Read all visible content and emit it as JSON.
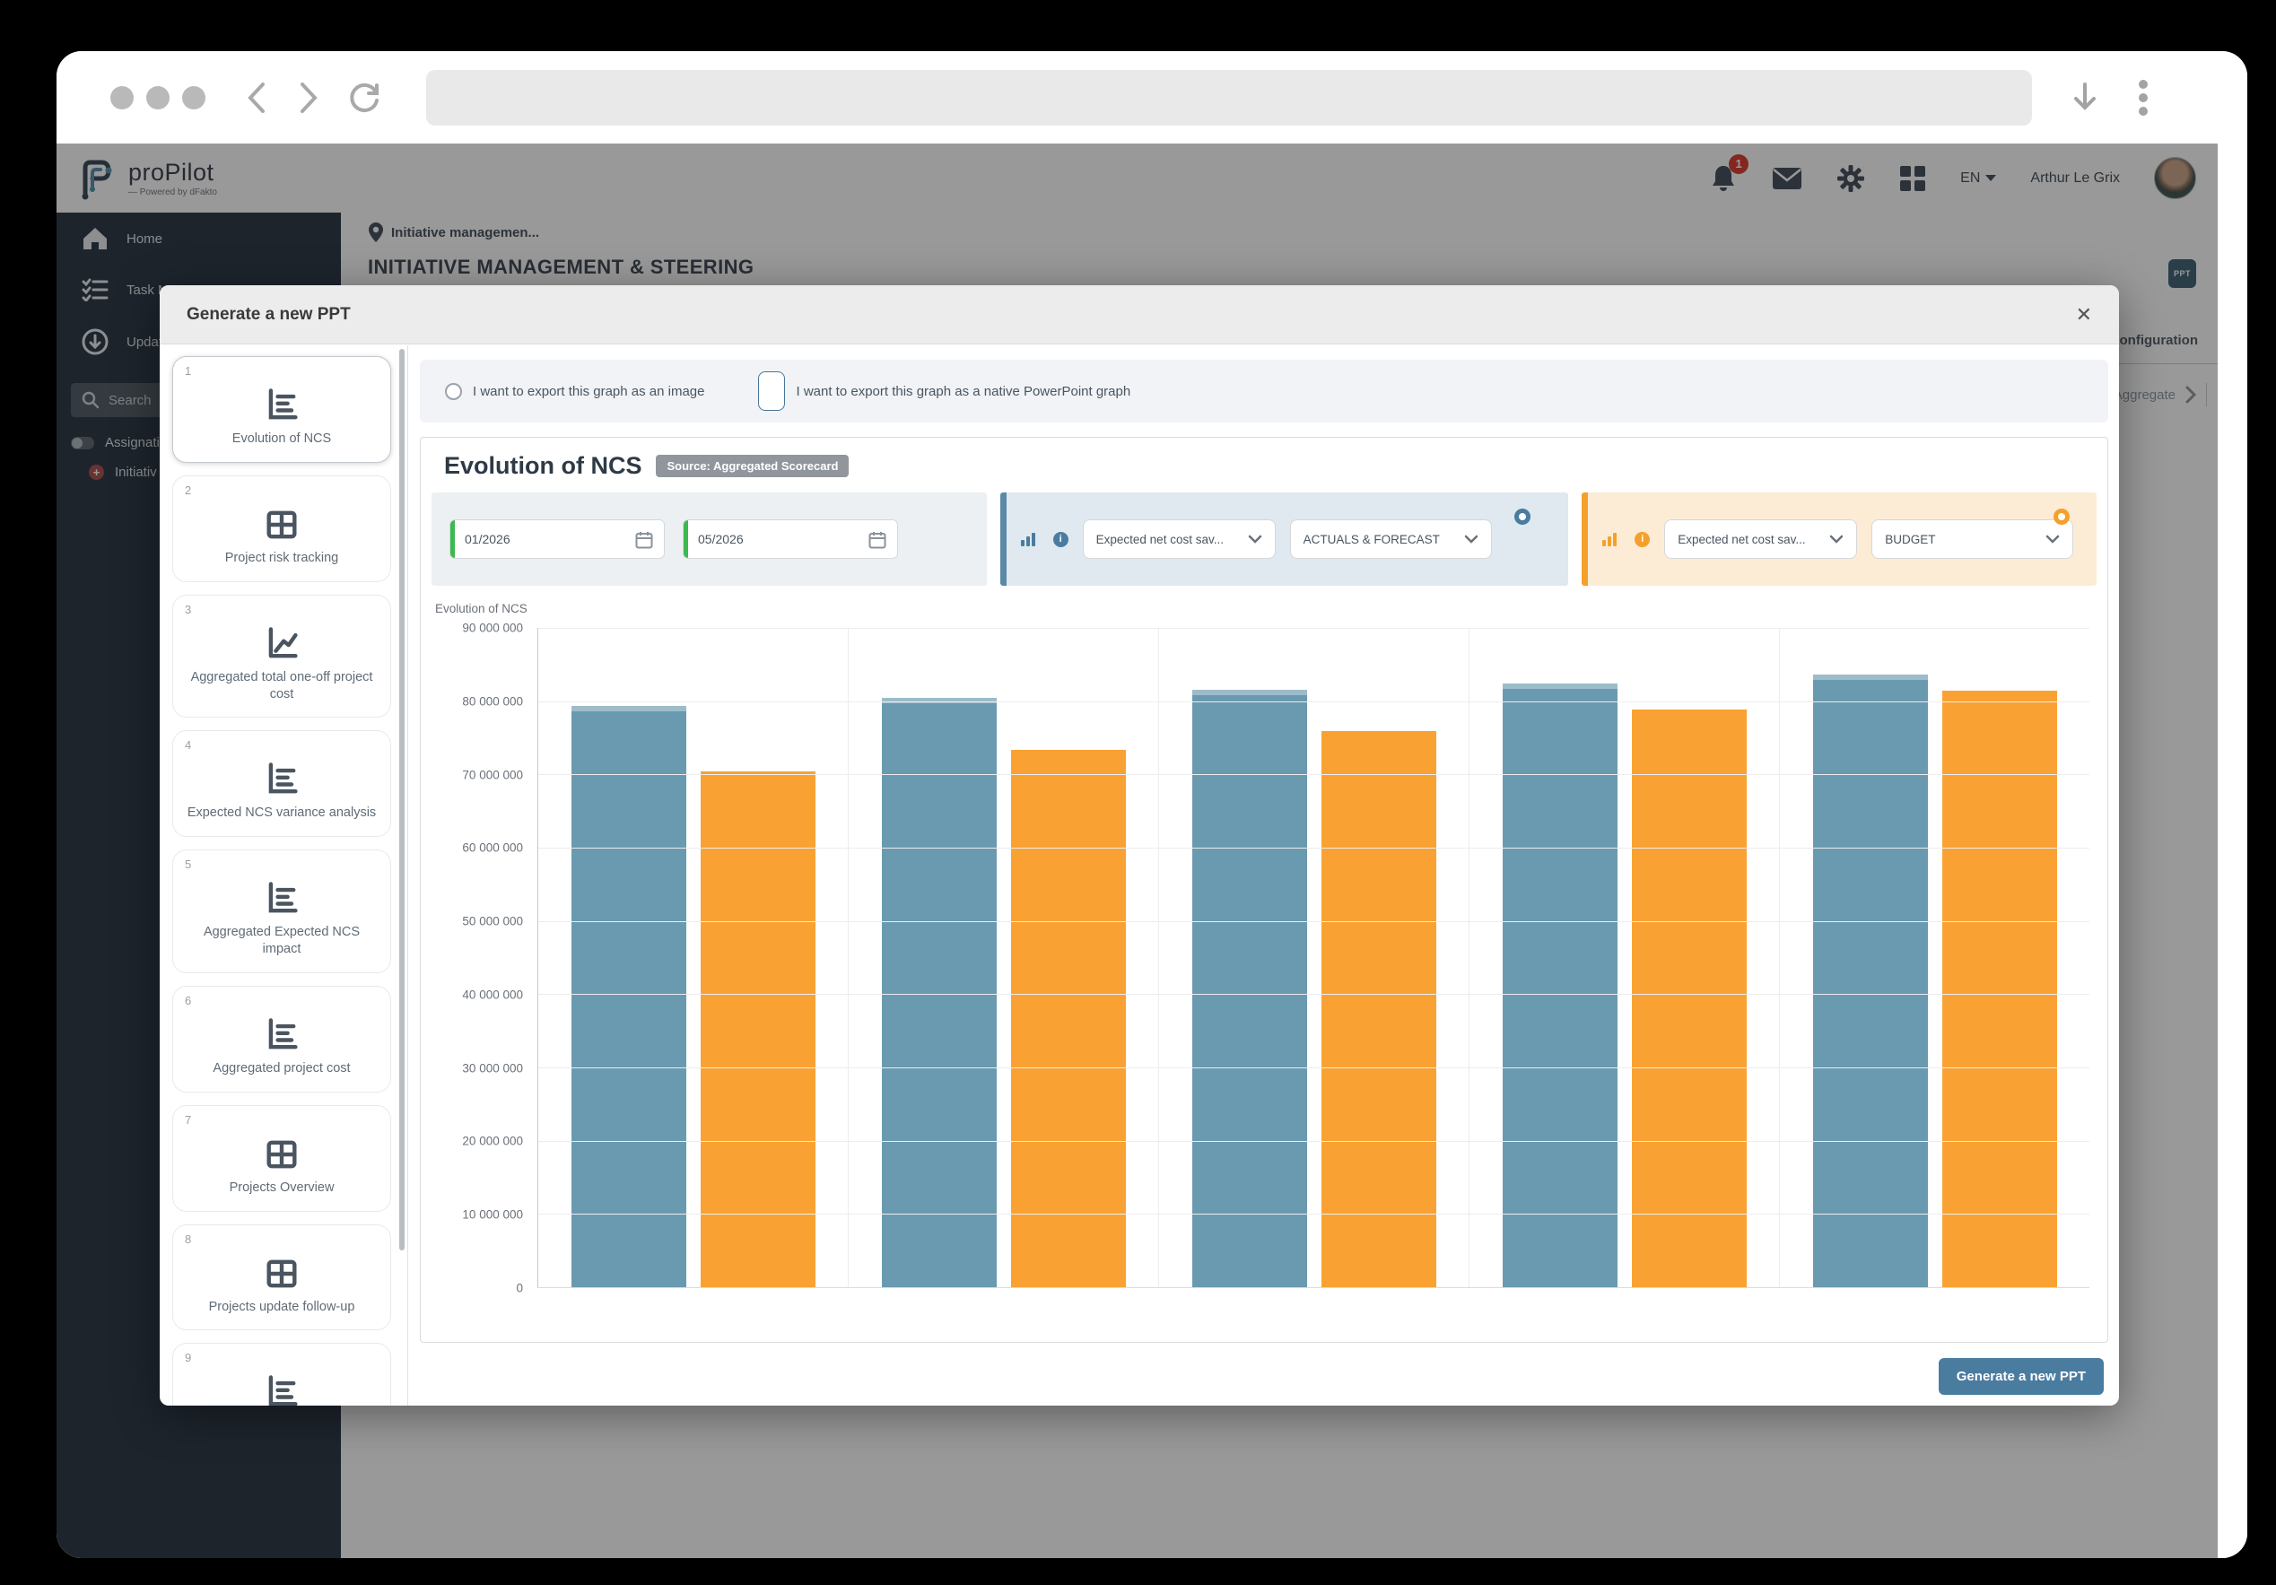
{
  "browser": {
    "url": ""
  },
  "app_header": {
    "logo_text": "proPilot",
    "logo_sub": "— Powered by dFakto",
    "notification_count": "1",
    "lang": "EN",
    "user_name": "Arthur Le Grix"
  },
  "sidebar": {
    "home": "Home",
    "tasks": "Task Ma",
    "update": "Update",
    "search": "Search",
    "assignations": "Assignatio",
    "initiatives": "Initiativ"
  },
  "page": {
    "breadcrumb": "Initiative managemen...",
    "title": "INITIATIVE MANAGEMENT & STEERING",
    "ppt_button_label": "PPT",
    "config_label": "Configuration",
    "aggregate_label": "Aggregate"
  },
  "modal": {
    "title": "Generate a new PPT",
    "close_label": "✕",
    "generate_button_label": "Generate a new PPT",
    "slides": [
      {
        "num": "1",
        "label": "Evolution of NCS",
        "icon": "bar-chart",
        "selected": true
      },
      {
        "num": "2",
        "label": "Project risk tracking",
        "icon": "table",
        "selected": false
      },
      {
        "num": "3",
        "label": "Aggregated total one-off project cost",
        "icon": "line-chart",
        "selected": false
      },
      {
        "num": "4",
        "label": "Expected NCS variance analysis",
        "icon": "bar-chart",
        "selected": false
      },
      {
        "num": "5",
        "label": "Aggregated Expected NCS impact",
        "icon": "bar-chart",
        "selected": false
      },
      {
        "num": "6",
        "label": "Aggregated project cost",
        "icon": "bar-chart",
        "selected": false
      },
      {
        "num": "7",
        "label": "Projects Overview",
        "icon": "table",
        "selected": false
      },
      {
        "num": "8",
        "label": "Projects update follow-up",
        "icon": "table",
        "selected": false
      },
      {
        "num": "9",
        "label": "",
        "icon": "bar-chart",
        "selected": false
      }
    ],
    "radio_options": [
      {
        "label": "I want to export this graph as an image",
        "selected": false
      },
      {
        "label": "I want to export this graph as a native PowerPoint graph",
        "selected": true
      }
    ],
    "graph": {
      "title": "Evolution of NCS",
      "source_badge": "Source: Aggregated Scorecard",
      "chart_title": "Evolution of NCS",
      "date_from": "01/2026",
      "date_to": "05/2026",
      "blue": {
        "metric": "Expected net cost sav...",
        "scenario": "ACTUALS & FORECAST"
      },
      "orange": {
        "metric": "Expected net cost sav...",
        "scenario": "BUDGET"
      }
    }
  },
  "chart_data": {
    "type": "bar",
    "title": "Evolution of NCS",
    "categories": [
      "",
      "",
      "",
      "",
      ""
    ],
    "series": [
      {
        "name": "ACTUALS & FORECAST",
        "color": "#6a9ab0",
        "values": [
          79400000,
          80500000,
          81500000,
          82400000,
          83600000
        ]
      },
      {
        "name": "BUDGET",
        "color": "#f9a233",
        "values": [
          70400000,
          73300000,
          75900000,
          78800000,
          81400000
        ]
      }
    ],
    "ylim": [
      0,
      90000000
    ],
    "ytick_step": 10000000,
    "grid": true,
    "legend_position": "none"
  },
  "colors": {
    "accent_blue": "#4a7ca0",
    "accent_orange": "#f5a02b",
    "sidebar_bg": "#1e2b3a",
    "green_accent": "#3cb94f"
  }
}
